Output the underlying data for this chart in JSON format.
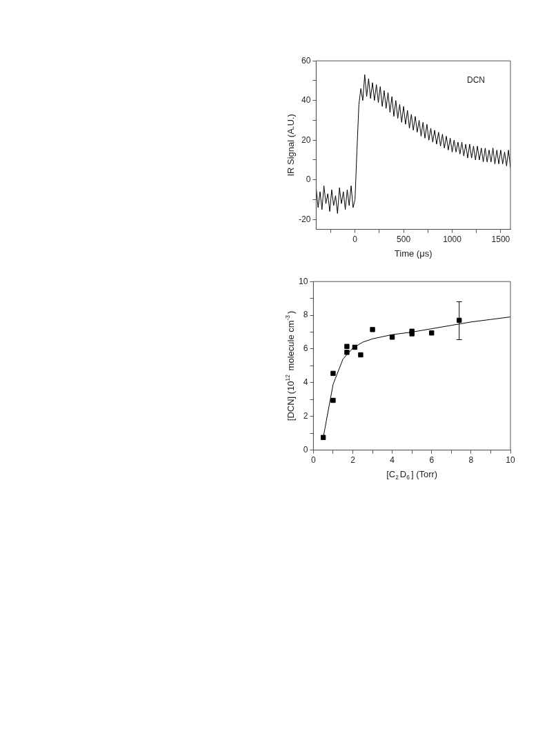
{
  "chart_data": [
    {
      "type": "line",
      "xlabel": "Time (μs)",
      "ylabel": "IR Signal (A.U.)",
      "annotations": [
        "DCN"
      ],
      "marker": "none",
      "grid": false,
      "legend": false,
      "x": [
        -400,
        -380,
        -360,
        -340,
        -320,
        -300,
        -280,
        -260,
        -240,
        -220,
        -200,
        -180,
        -160,
        -140,
        -120,
        -100,
        -80,
        -60,
        -40,
        -20,
        0,
        20,
        40,
        60,
        80,
        100,
        120,
        140,
        160,
        180,
        200,
        220,
        240,
        260,
        280,
        300,
        320,
        340,
        360,
        380,
        400,
        420,
        440,
        460,
        480,
        500,
        520,
        540,
        560,
        580,
        600,
        620,
        640,
        660,
        680,
        700,
        720,
        740,
        760,
        780,
        800,
        820,
        840,
        860,
        880,
        900,
        920,
        940,
        960,
        980,
        1000,
        1020,
        1040,
        1060,
        1080,
        1100,
        1120,
        1140,
        1160,
        1180,
        1200,
        1220,
        1240,
        1260,
        1280,
        1300,
        1320,
        1340,
        1360,
        1380,
        1400,
        1420,
        1440,
        1460,
        1480,
        1500,
        1520,
        1540,
        1560,
        1580,
        1600
      ],
      "series": [
        {
          "color": "#000000",
          "values": [
            -4,
            -14,
            -6,
            -15,
            -3,
            -12,
            -7,
            -16,
            -5,
            -13,
            -8,
            -17,
            -4,
            -12,
            -6,
            -15,
            -5,
            -13,
            -3,
            -14,
            -10,
            15,
            38,
            46,
            40,
            53,
            42,
            51,
            41,
            49,
            40,
            48,
            39,
            47,
            37,
            45,
            36,
            44,
            34,
            42,
            32,
            40,
            31,
            38,
            29,
            37,
            28,
            35,
            26,
            33,
            25,
            32,
            24,
            30,
            22,
            29,
            21,
            28,
            20,
            26,
            19,
            25,
            18,
            24,
            17,
            23,
            16,
            22,
            15,
            21,
            14,
            20,
            14,
            19,
            13,
            19,
            12,
            18,
            11,
            18,
            11,
            17,
            10,
            17,
            10,
            16,
            9,
            16,
            9,
            15,
            9,
            16,
            8,
            15,
            8,
            15,
            8,
            14,
            7,
            15,
            6
          ]
        }
      ],
      "xlim": [
        -400,
        1600
      ],
      "xticks": [
        {
          "value": -250,
          "label": null
        },
        0,
        {
          "value": 250,
          "label": null
        },
        500,
        {
          "value": 750,
          "label": null
        },
        1000,
        {
          "value": 1250,
          "label": null
        },
        1500
      ],
      "ylim": [
        -25,
        60
      ],
      "yticks": [
        -20,
        {
          "value": -10,
          "label": null
        },
        0,
        {
          "value": 10,
          "label": null
        },
        20,
        {
          "value": 30,
          "label": null
        },
        40,
        {
          "value": 50,
          "label": null
        },
        60
      ]
    },
    {
      "type": "scatter",
      "xlabel": "[C$_{2}$D$_{6}$] (Torr)",
      "ylabel": "[DCN] (10$^{12}$ molecule cm$^{-3}$)",
      "marker": "square",
      "grid": false,
      "legend": false,
      "series": [
        {
          "color": "#000000",
          "x": [
            0.5,
            1,
            1,
            1.7,
            1.7,
            2.1,
            2.4,
            3,
            4,
            5,
            5,
            6,
            7.4
          ],
          "values": [
            0.75,
            4.55,
            2.95,
            6.15,
            5.8,
            6.1,
            5.65,
            7.15,
            6.7,
            7.05,
            6.9,
            6.95,
            7.7
          ],
          "errors": [
            null,
            null,
            null,
            null,
            null,
            null,
            null,
            null,
            null,
            null,
            null,
            null,
            [
              6.55,
              8.8
            ]
          ]
        },
        {
          "type": "line",
          "marker": "none",
          "color": "#000000",
          "x": [
            0.5,
            1,
            1.5,
            2,
            2.5,
            3,
            4,
            5,
            6,
            7,
            8,
            9,
            10
          ],
          "values": [
            0.75,
            3.9,
            5.4,
            6.05,
            6.4,
            6.6,
            6.85,
            7.0,
            7.2,
            7.4,
            7.6,
            7.75,
            7.9
          ]
        }
      ],
      "xlim": [
        0,
        10
      ],
      "xticks": [
        0,
        {
          "value": 1,
          "label": null
        },
        2,
        {
          "value": 3,
          "label": null
        },
        4,
        {
          "value": 5,
          "label": null
        },
        6,
        {
          "value": 7,
          "label": null
        },
        8,
        {
          "value": 9,
          "label": null
        },
        10
      ],
      "ylim": [
        0,
        10
      ],
      "yticks": [
        0,
        {
          "value": 1,
          "label": null
        },
        2,
        {
          "value": 3,
          "label": null
        },
        4,
        {
          "value": 5,
          "label": null
        },
        6,
        {
          "value": 7,
          "label": null
        },
        8,
        {
          "value": 9,
          "label": null
        },
        10
      ]
    }
  ]
}
